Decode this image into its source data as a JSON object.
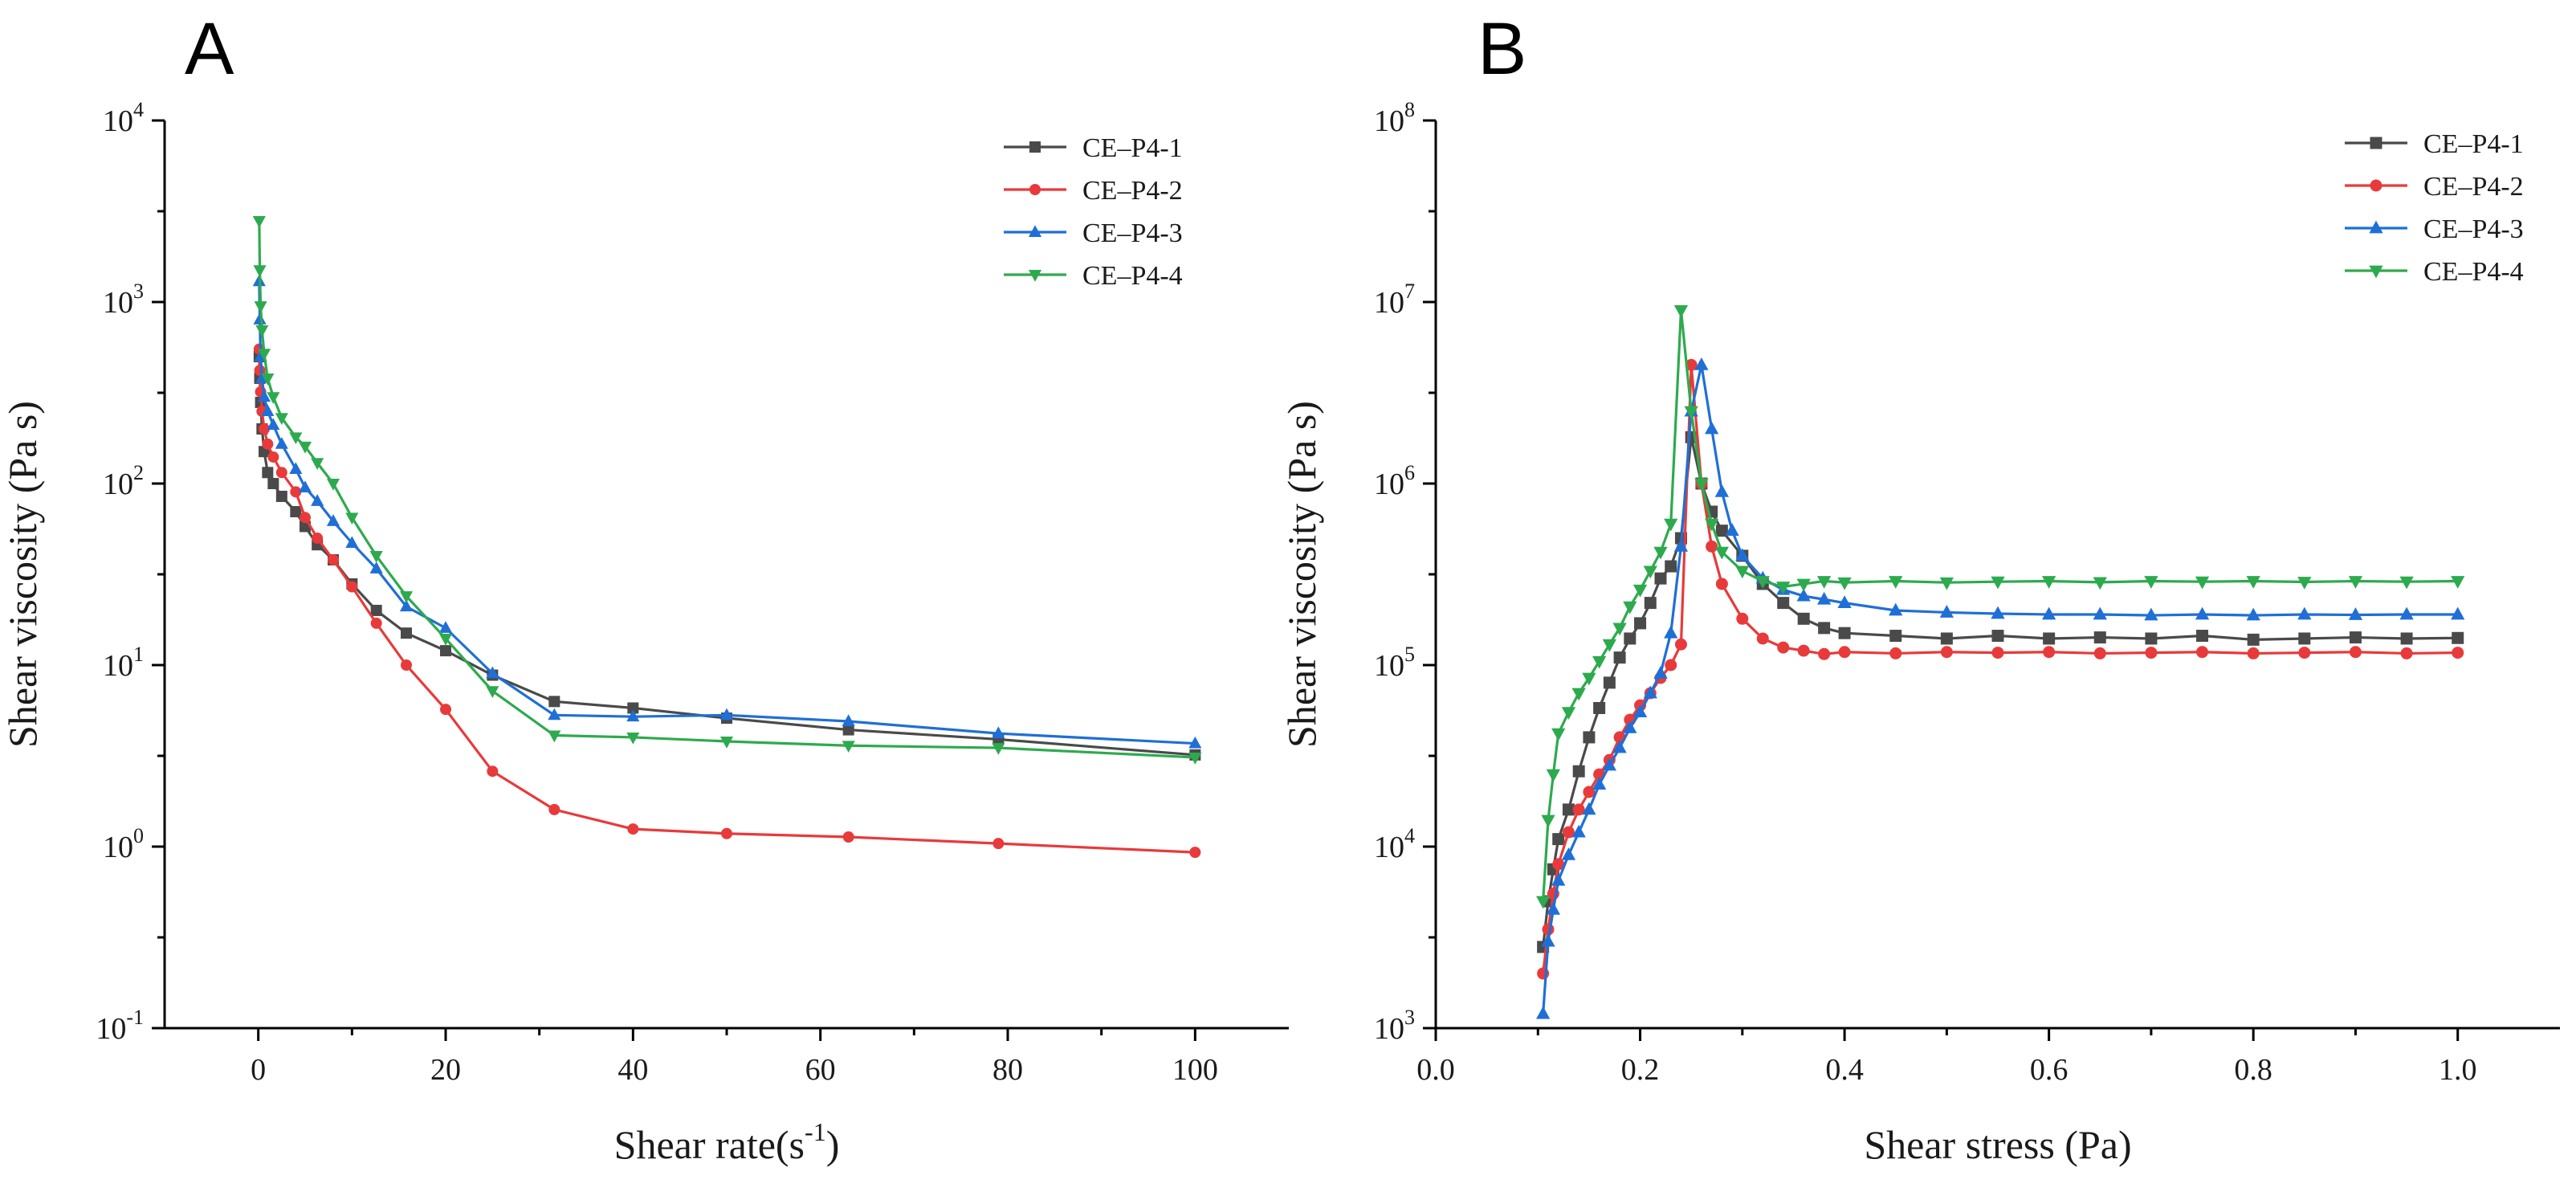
{
  "chart_data": [
    {
      "panel": "A",
      "type": "line",
      "xlabel": "Shear rate(s",
      "xlabel_sup": "-1",
      "xlabel_end": ")",
      "ylabel": "Shear viscosity (Pa s)",
      "xscale": "linear",
      "yscale": "log",
      "xlim": [
        -10,
        110
      ],
      "ylim": [
        0.1,
        10000
      ],
      "xticks": [
        0,
        20,
        40,
        60,
        80,
        100
      ],
      "xtick_labels": [
        "0",
        "20",
        "40",
        "60",
        "80",
        "100"
      ],
      "yticks": [
        0.1,
        1,
        10,
        100,
        1000,
        10000
      ],
      "ytick_labels": [
        {
          "base": "10",
          "exp": "-1"
        },
        {
          "base": "10",
          "exp": "0"
        },
        {
          "base": "10",
          "exp": "1"
        },
        {
          "base": "10",
          "exp": "2"
        },
        {
          "base": "10",
          "exp": "3"
        },
        {
          "base": "10",
          "exp": "4"
        }
      ],
      "legend": "top-right",
      "series": [
        {
          "name": "CE–P4-1",
          "color": "#4a4a4a",
          "marker": "square",
          "x": [
            0.1,
            0.16,
            0.25,
            0.4,
            0.63,
            1,
            1.6,
            2.5,
            4,
            5,
            6.3,
            8,
            10,
            12.6,
            15.8,
            20,
            25,
            31.6,
            40,
            50,
            63,
            79,
            100
          ],
          "y": [
            500,
            380,
            280,
            200,
            150,
            115,
            100,
            85,
            70,
            58,
            46,
            38,
            28,
            20,
            15,
            12,
            8.8,
            6.3,
            5.8,
            5.1,
            4.4,
            3.9,
            3.2
          ]
        },
        {
          "name": "CE–P4-2",
          "color": "#e83a3a",
          "marker": "circle",
          "x": [
            0.1,
            0.16,
            0.25,
            0.4,
            0.63,
            1,
            1.6,
            2.5,
            4,
            5,
            6.3,
            8,
            10,
            12.6,
            15.8,
            20,
            25,
            31.6,
            40,
            50,
            63,
            79,
            100
          ],
          "y": [
            550,
            420,
            320,
            250,
            200,
            165,
            140,
            115,
            90,
            65,
            50,
            38,
            27,
            17,
            10,
            5.7,
            2.6,
            1.6,
            1.25,
            1.18,
            1.13,
            1.04,
            0.93
          ]
        },
        {
          "name": "CE–P4-3",
          "color": "#1f6fd6",
          "marker": "triangle-up",
          "x": [
            0.1,
            0.16,
            0.25,
            0.4,
            0.63,
            1,
            1.6,
            2.5,
            4,
            5,
            6.3,
            8,
            10,
            12.6,
            15.8,
            20,
            25,
            31.6,
            40,
            50,
            63,
            79,
            100
          ],
          "y": [
            1300,
            800,
            500,
            380,
            300,
            250,
            210,
            165,
            120,
            95,
            80,
            62,
            47,
            34,
            21,
            16,
            9,
            5.3,
            5.2,
            5.3,
            4.9,
            4.2,
            3.7
          ]
        },
        {
          "name": "CE–P4-4",
          "color": "#2eaa4e",
          "marker": "triangle-down",
          "x": [
            0.1,
            0.16,
            0.25,
            0.4,
            0.63,
            1,
            1.6,
            2.5,
            4,
            5,
            6.3,
            8,
            10,
            12.6,
            15.8,
            20,
            25,
            31.6,
            40,
            50,
            63,
            79,
            100
          ],
          "y": [
            2800,
            1500,
            950,
            700,
            520,
            380,
            300,
            230,
            180,
            160,
            130,
            100,
            65,
            40,
            24,
            14,
            7.2,
            4.1,
            4.0,
            3.8,
            3.6,
            3.5,
            3.1
          ]
        }
      ]
    },
    {
      "panel": "B",
      "type": "line",
      "xlabel": "Shear stress (Pa)",
      "ylabel": "Shear viscosity (Pa s)",
      "xscale": "linear",
      "yscale": "log",
      "xlim": [
        0.0,
        1.1
      ],
      "ylim": [
        1000,
        100000000
      ],
      "xticks": [
        0.0,
        0.2,
        0.4,
        0.6,
        0.8,
        1.0
      ],
      "xtick_labels": [
        "0.0",
        "0.2",
        "0.4",
        "0.6",
        "0.8",
        "1.0"
      ],
      "yticks": [
        1000,
        10000,
        100000,
        1000000,
        10000000,
        100000000
      ],
      "ytick_labels": [
        {
          "base": "10",
          "exp": "3"
        },
        {
          "base": "10",
          "exp": "4"
        },
        {
          "base": "10",
          "exp": "5"
        },
        {
          "base": "10",
          "exp": "6"
        },
        {
          "base": "10",
          "exp": "7"
        },
        {
          "base": "10",
          "exp": "8"
        }
      ],
      "legend": "top-right",
      "series": [
        {
          "name": "CE–P4-1",
          "color": "#4a4a4a",
          "marker": "square",
          "x": [
            0.105,
            0.11,
            0.115,
            0.12,
            0.13,
            0.14,
            0.15,
            0.16,
            0.17,
            0.18,
            0.19,
            0.2,
            0.21,
            0.22,
            0.23,
            0.24,
            0.25,
            0.26,
            0.27,
            0.28,
            0.3,
            0.32,
            0.34,
            0.36,
            0.38,
            0.4,
            0.45,
            0.5,
            0.55,
            0.6,
            0.65,
            0.7,
            0.75,
            0.8,
            0.85,
            0.9,
            0.95,
            1.0
          ],
          "y": [
            2800,
            5000,
            7500,
            11000,
            16000,
            26000,
            40000,
            58000,
            80000,
            110000,
            140000,
            170000,
            220000,
            300000,
            350000,
            500000,
            1800000,
            1000000,
            700000,
            550000,
            400000,
            280000,
            220000,
            180000,
            160000,
            150000,
            145000,
            140000,
            145000,
            140000,
            142000,
            140000,
            145000,
            138000,
            140000,
            142000,
            140000,
            141000
          ]
        },
        {
          "name": "CE–P4-2",
          "color": "#e83a3a",
          "marker": "circle",
          "x": [
            0.105,
            0.11,
            0.115,
            0.12,
            0.13,
            0.14,
            0.15,
            0.16,
            0.17,
            0.18,
            0.19,
            0.2,
            0.21,
            0.22,
            0.23,
            0.24,
            0.25,
            0.26,
            0.27,
            0.28,
            0.3,
            0.32,
            0.34,
            0.36,
            0.38,
            0.4,
            0.45,
            0.5,
            0.55,
            0.6,
            0.65,
            0.7,
            0.75,
            0.8,
            0.85,
            0.9,
            0.95,
            1.0
          ],
          "y": [
            2000,
            3500,
            5500,
            8000,
            12000,
            16000,
            20000,
            25000,
            30000,
            40000,
            50000,
            60000,
            70000,
            85000,
            100000,
            130000,
            4500000,
            1000000,
            450000,
            280000,
            180000,
            140000,
            125000,
            120000,
            115000,
            118000,
            116000,
            118000,
            117000,
            118000,
            116000,
            117000,
            118000,
            116000,
            117000,
            118000,
            116000,
            117000
          ]
        },
        {
          "name": "CE–P4-3",
          "color": "#1f6fd6",
          "marker": "triangle-up",
          "x": [
            0.105,
            0.11,
            0.115,
            0.12,
            0.13,
            0.14,
            0.15,
            0.16,
            0.17,
            0.18,
            0.19,
            0.2,
            0.21,
            0.22,
            0.23,
            0.24,
            0.25,
            0.26,
            0.27,
            0.28,
            0.29,
            0.3,
            0.32,
            0.34,
            0.36,
            0.38,
            0.4,
            0.45,
            0.5,
            0.55,
            0.6,
            0.65,
            0.7,
            0.75,
            0.8,
            0.85,
            0.9,
            0.95,
            1.0
          ],
          "y": [
            1200,
            3000,
            4500,
            6500,
            9000,
            12000,
            16000,
            22000,
            28000,
            35000,
            45000,
            55000,
            70000,
            90000,
            150000,
            450000,
            2500000,
            4500000,
            2000000,
            900000,
            550000,
            400000,
            300000,
            260000,
            240000,
            230000,
            220000,
            200000,
            195000,
            192000,
            190000,
            190000,
            188000,
            190000,
            188000,
            190000,
            189000,
            190000,
            190000
          ]
        },
        {
          "name": "CE–P4-4",
          "color": "#2eaa4e",
          "marker": "triangle-down",
          "x": [
            0.105,
            0.11,
            0.115,
            0.12,
            0.13,
            0.14,
            0.15,
            0.16,
            0.17,
            0.18,
            0.19,
            0.2,
            0.21,
            0.22,
            0.23,
            0.24,
            0.25,
            0.26,
            0.27,
            0.28,
            0.3,
            0.32,
            0.34,
            0.36,
            0.38,
            0.4,
            0.45,
            0.5,
            0.55,
            0.6,
            0.65,
            0.7,
            0.75,
            0.8,
            0.85,
            0.9,
            0.95,
            1.0
          ],
          "y": [
            5000,
            14000,
            25000,
            42000,
            55000,
            70000,
            85000,
            105000,
            130000,
            160000,
            210000,
            260000,
            330000,
            420000,
            600000,
            9000000,
            2500000,
            1000000,
            600000,
            420000,
            330000,
            290000,
            270000,
            280000,
            290000,
            285000,
            290000,
            285000,
            288000,
            290000,
            286000,
            290000,
            288000,
            290000,
            287000,
            290000,
            288000,
            290000
          ]
        }
      ]
    }
  ]
}
